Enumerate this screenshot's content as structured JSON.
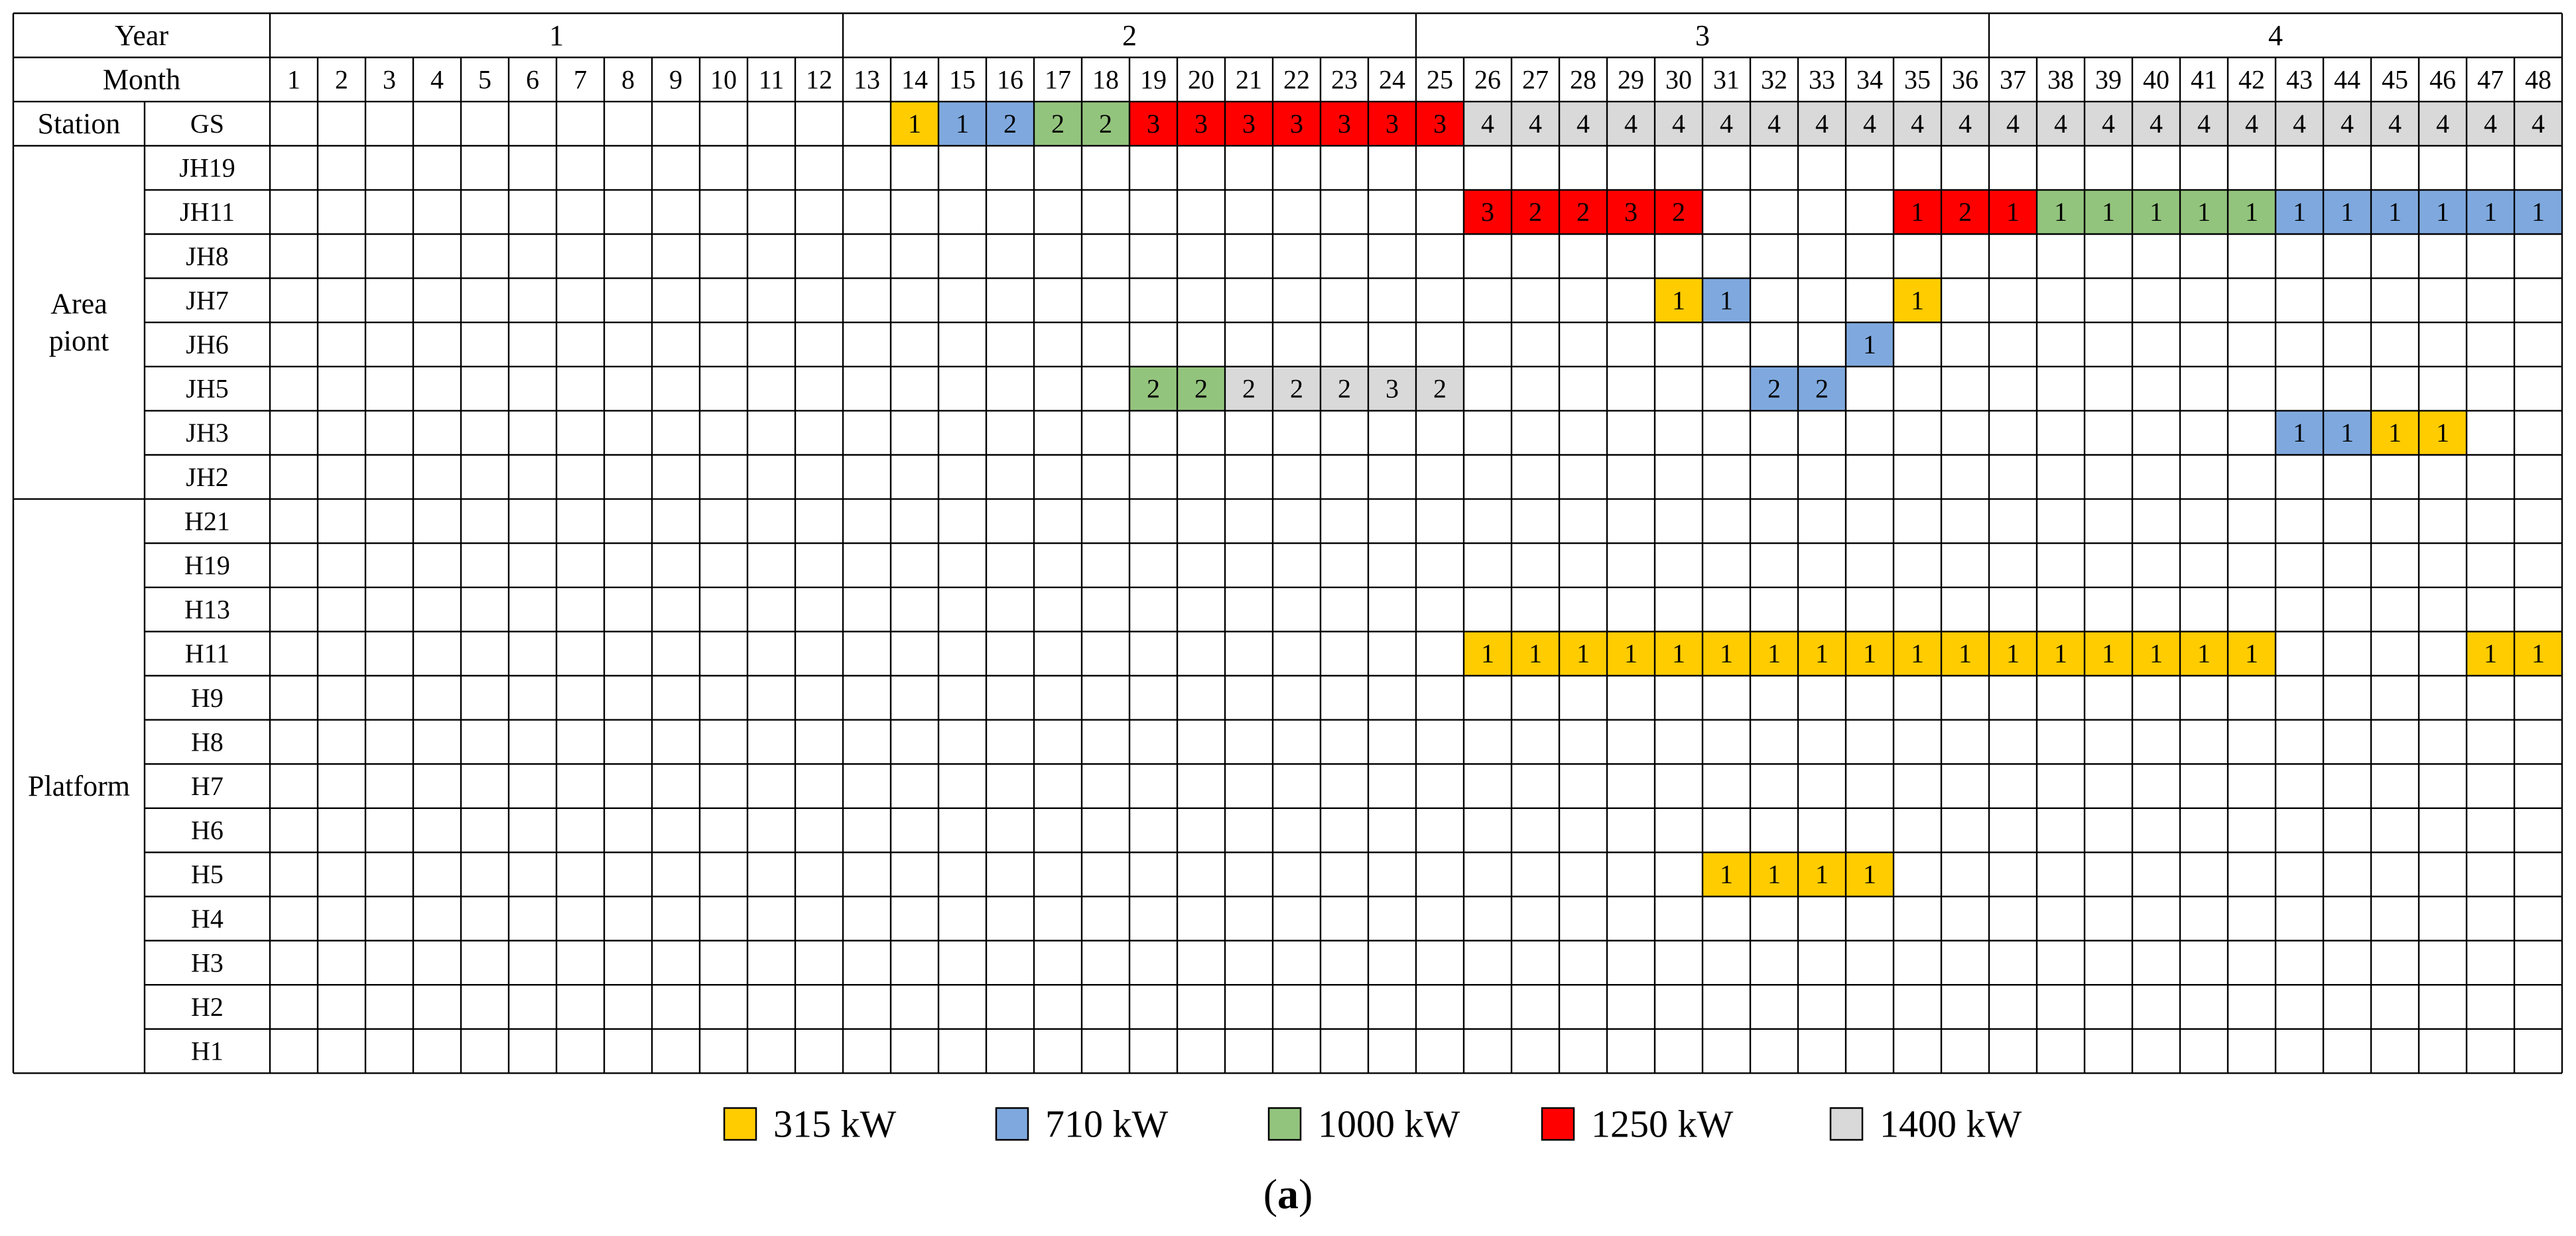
{
  "chart_data": {
    "type": "table",
    "header": {
      "year_label": "Year",
      "month_label": "Month",
      "station_label": "Station"
    },
    "years": [
      {
        "label": "1",
        "months": [
          1,
          12
        ]
      },
      {
        "label": "2",
        "months": [
          13,
          24
        ]
      },
      {
        "label": "3",
        "months": [
          25,
          36
        ]
      },
      {
        "label": "4",
        "months": [
          37,
          48
        ]
      }
    ],
    "month_labels": [
      "1",
      "2",
      "3",
      "4",
      "5",
      "6",
      "7",
      "8",
      "9",
      "10",
      "11",
      "12",
      "13",
      "14",
      "15",
      "16",
      "17",
      "18",
      "19",
      "20",
      "21",
      "22",
      "23",
      "24",
      "25",
      "26",
      "27",
      "28",
      "29",
      "30",
      "31",
      "32",
      "33",
      "34",
      "35",
      "36",
      "37",
      "38",
      "39",
      "40",
      "41",
      "42",
      "43",
      "44",
      "45",
      "46",
      "47",
      "48"
    ],
    "groups": [
      {
        "label": "Station",
        "rows": [
          "GS"
        ],
        "label_in_row": true
      },
      {
        "label": "Area\npiont",
        "rows": [
          "JH19",
          "JH11",
          "JH8",
          "JH7",
          "JH6",
          "JH5",
          "JH3",
          "JH2"
        ]
      },
      {
        "label": "Platform",
        "rows": [
          "H21",
          "H19",
          "H13",
          "H11",
          "H9",
          "H8",
          "H7",
          "H6",
          "H5",
          "H4",
          "H3",
          "H2",
          "H1"
        ]
      }
    ],
    "legend": [
      {
        "key": "315",
        "label": "315 kW",
        "color": "#FFCC00"
      },
      {
        "key": "710",
        "label": "710 kW",
        "color": "#7FA9DE"
      },
      {
        "key": "1000",
        "label": "1000 kW",
        "color": "#93C47D"
      },
      {
        "key": "1250",
        "label": "1250 kW",
        "color": "#FF0000"
      },
      {
        "key": "1400",
        "label": "1400 kW",
        "color": "#D9D9D9"
      }
    ],
    "filled_cells": {
      "GS": [
        [
          14,
          "1",
          "315"
        ],
        [
          15,
          "1",
          "710"
        ],
        [
          16,
          "2",
          "710"
        ],
        [
          17,
          "2",
          "1000"
        ],
        [
          18,
          "2",
          "1000"
        ],
        [
          19,
          "3",
          "1250"
        ],
        [
          20,
          "3",
          "1250"
        ],
        [
          21,
          "3",
          "1250"
        ],
        [
          22,
          "3",
          "1250"
        ],
        [
          23,
          "3",
          "1250"
        ],
        [
          24,
          "3",
          "1250"
        ],
        [
          25,
          "3",
          "1250"
        ],
        [
          26,
          "4",
          "1400"
        ],
        [
          27,
          "4",
          "1400"
        ],
        [
          28,
          "4",
          "1400"
        ],
        [
          29,
          "4",
          "1400"
        ],
        [
          30,
          "4",
          "1400"
        ],
        [
          31,
          "4",
          "1400"
        ],
        [
          32,
          "4",
          "1400"
        ],
        [
          33,
          "4",
          "1400"
        ],
        [
          34,
          "4",
          "1400"
        ],
        [
          35,
          "4",
          "1400"
        ],
        [
          36,
          "4",
          "1400"
        ],
        [
          37,
          "4",
          "1400"
        ],
        [
          38,
          "4",
          "1400"
        ],
        [
          39,
          "4",
          "1400"
        ],
        [
          40,
          "4",
          "1400"
        ],
        [
          41,
          "4",
          "1400"
        ],
        [
          42,
          "4",
          "1400"
        ],
        [
          43,
          "4",
          "1400"
        ],
        [
          44,
          "4",
          "1400"
        ],
        [
          45,
          "4",
          "1400"
        ],
        [
          46,
          "4",
          "1400"
        ],
        [
          47,
          "4",
          "1400"
        ],
        [
          48,
          "4",
          "1400"
        ]
      ],
      "JH11": [
        [
          26,
          "3",
          "1250"
        ],
        [
          27,
          "2",
          "1250"
        ],
        [
          28,
          "2",
          "1250"
        ],
        [
          29,
          "3",
          "1250"
        ],
        [
          30,
          "2",
          "1250"
        ],
        [
          35,
          "1",
          "1250"
        ],
        [
          36,
          "2",
          "1250"
        ],
        [
          37,
          "1",
          "1250"
        ],
        [
          38,
          "1",
          "1000"
        ],
        [
          39,
          "1",
          "1000"
        ],
        [
          40,
          "1",
          "1000"
        ],
        [
          41,
          "1",
          "1000"
        ],
        [
          42,
          "1",
          "1000"
        ],
        [
          43,
          "1",
          "710"
        ],
        [
          44,
          "1",
          "710"
        ],
        [
          45,
          "1",
          "710"
        ],
        [
          46,
          "1",
          "710"
        ],
        [
          47,
          "1",
          "710"
        ],
        [
          48,
          "1",
          "710"
        ]
      ],
      "JH7": [
        [
          30,
          "1",
          "315"
        ],
        [
          31,
          "1",
          "710"
        ],
        [
          35,
          "1",
          "315"
        ]
      ],
      "JH6": [
        [
          34,
          "1",
          "710"
        ]
      ],
      "JH5": [
        [
          19,
          "2",
          "1000"
        ],
        [
          20,
          "2",
          "1000"
        ],
        [
          21,
          "2",
          "1400"
        ],
        [
          22,
          "2",
          "1400"
        ],
        [
          23,
          "2",
          "1400"
        ],
        [
          24,
          "3",
          "1400"
        ],
        [
          25,
          "2",
          "1400"
        ],
        [
          32,
          "2",
          "710"
        ],
        [
          33,
          "2",
          "710"
        ]
      ],
      "JH3": [
        [
          43,
          "1",
          "710"
        ],
        [
          44,
          "1",
          "710"
        ],
        [
          45,
          "1",
          "315"
        ],
        [
          46,
          "1",
          "315"
        ]
      ],
      "H11": [
        [
          26,
          "1",
          "315"
        ],
        [
          27,
          "1",
          "315"
        ],
        [
          28,
          "1",
          "315"
        ],
        [
          29,
          "1",
          "315"
        ],
        [
          30,
          "1",
          "315"
        ],
        [
          31,
          "1",
          "315"
        ],
        [
          32,
          "1",
          "315"
        ],
        [
          33,
          "1",
          "315"
        ],
        [
          34,
          "1",
          "315"
        ],
        [
          35,
          "1",
          "315"
        ],
        [
          36,
          "1",
          "315"
        ],
        [
          37,
          "1",
          "315"
        ],
        [
          38,
          "1",
          "315"
        ],
        [
          39,
          "1",
          "315"
        ],
        [
          40,
          "1",
          "315"
        ],
        [
          41,
          "1",
          "315"
        ],
        [
          42,
          "1",
          "315"
        ],
        [
          47,
          "1",
          "315"
        ],
        [
          48,
          "1",
          "315"
        ]
      ],
      "H5": [
        [
          31,
          "1",
          "315"
        ],
        [
          32,
          "1",
          "315"
        ],
        [
          33,
          "1",
          "315"
        ],
        [
          34,
          "1",
          "315"
        ]
      ]
    },
    "caption": "(a)"
  }
}
